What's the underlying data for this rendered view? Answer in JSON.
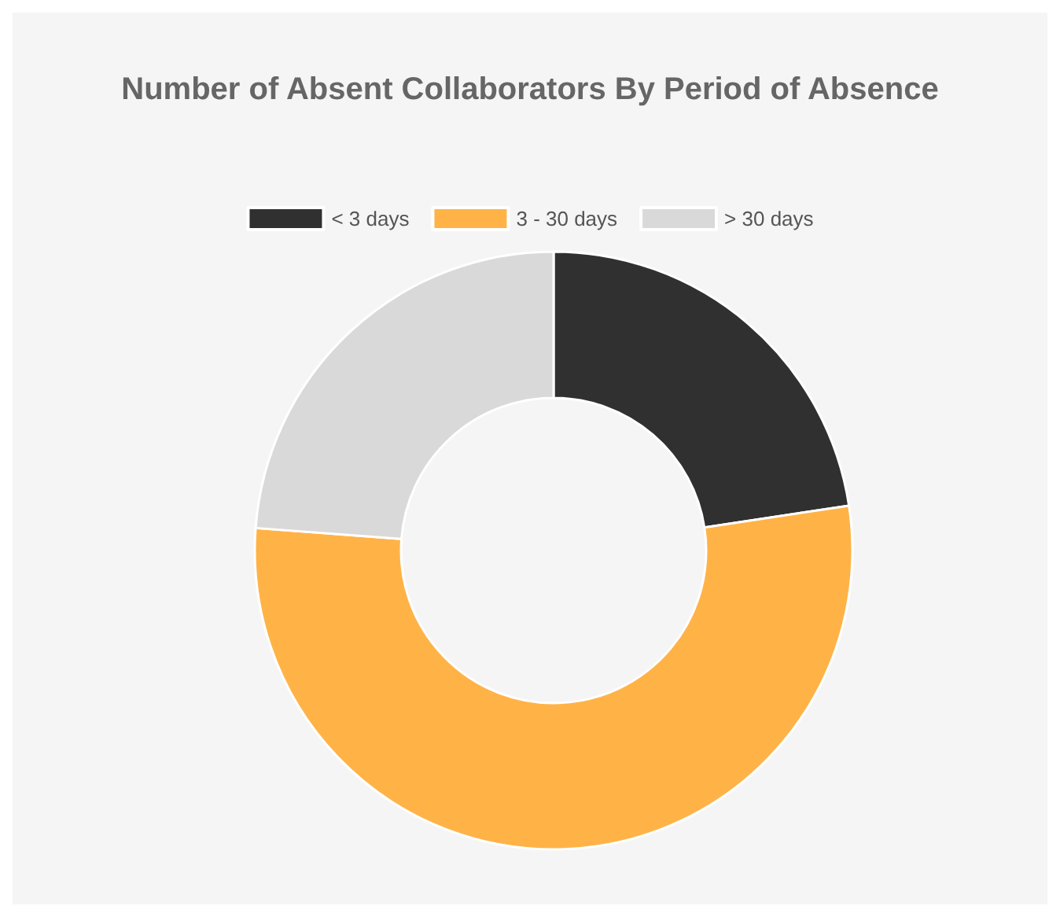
{
  "chart_data": {
    "type": "donut",
    "title": "Number of Absent Collaborators By Period of Absence",
    "categories": [
      "< 3 days",
      "3 - 30 days",
      "> 30 days"
    ],
    "values": [
      22.6,
      53.6,
      23.8
    ],
    "colors": [
      "#303030",
      "#ffb347",
      "#d9d9d9"
    ],
    "legend": "top"
  }
}
